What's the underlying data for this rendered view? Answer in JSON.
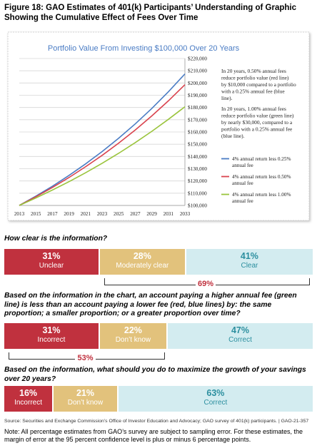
{
  "figure_title": "Figure 18: GAO Estimates of 401(k) Participants’ Understanding of Graphic Showing the Cumulative Effect of Fees Over Time",
  "chart_data": {
    "type": "line",
    "title": "Portfolio Value From Investing $100,000 Over 20 Years",
    "x": [
      2013,
      2015,
      2017,
      2019,
      2021,
      2023,
      2025,
      2027,
      2029,
      2031,
      2033
    ],
    "xlim": [
      2013,
      2033
    ],
    "ylim": [
      100000,
      220000
    ],
    "x_ticks": [
      "2013",
      "2015",
      "2017",
      "2019",
      "2021",
      "2023",
      "2025",
      "2027",
      "2029",
      "2031",
      "2033"
    ],
    "y_ticks": [
      "$100,000",
      "$110,000",
      "$120,000",
      "$130,000",
      "$140,000",
      "$150,000",
      "$160,000",
      "$170,000",
      "$180,000",
      "$190,000",
      "$200,000",
      "$210,000",
      "$220,000"
    ],
    "grid": true,
    "series": [
      {
        "name": "4% annual return less 0.25% annual fee",
        "color": "#4a7cc4",
        "values": [
          100000,
          107600,
          115700,
          124500,
          133900,
          144000,
          154900,
          166600,
          179200,
          192800,
          207400
        ]
      },
      {
        "name": "4% annual return less 0.50% annual fee",
        "color": "#d9434e",
        "values": [
          100000,
          107100,
          114700,
          122800,
          131600,
          140900,
          150900,
          161600,
          173100,
          185400,
          198600
        ]
      },
      {
        "name": "4% annual return less 1.00% annual fee",
        "color": "#9ac43c",
        "values": [
          100000,
          106100,
          112600,
          119400,
          126700,
          134400,
          142600,
          151300,
          160500,
          170300,
          180600
        ]
      }
    ],
    "legend_position": "right",
    "annotations": [
      "In 20 years, 0.50% annual fees reduce portfolio value (red line) by $10,000 compared to a portfolio with a 0.25% annual fee (blue line).",
      "In 20 years, 1.00% annual fees reduce portfolio value (green line) by nearly $30,000, compared to a portfolio with a 0.25% annual fee (blue line)."
    ]
  },
  "questions": [
    {
      "text": "How clear is the information?",
      "segments": [
        {
          "value": 31,
          "pct": "31%",
          "label": "Unclear",
          "color": "red"
        },
        {
          "value": 28,
          "pct": "28%",
          "label": "Moderately clear",
          "color": "tan"
        },
        {
          "value": 41,
          "pct": "41%",
          "label": "Clear",
          "color": "blue"
        }
      ],
      "brace_label": "69%"
    },
    {
      "text": "Based on the information in the chart, an account paying a higher annual fee (green line) is less than an account paying a lower fee (red, blue lines) by: the same proportion; a smaller proportion; or a greater proportion over time?",
      "segments": [
        {
          "value": 31,
          "pct": "31%",
          "label": "Incorrect",
          "color": "red"
        },
        {
          "value": 22,
          "pct": "22%",
          "label": "Don’t know",
          "color": "tan"
        },
        {
          "value": 47,
          "pct": "47%",
          "label": "Correct",
          "color": "blue"
        }
      ],
      "brace_label": "53%"
    },
    {
      "text": "Based on the information, what should you do to maximize the growth of your savings over 20 years?",
      "segments": [
        {
          "value": 16,
          "pct": "16%",
          "label": "Incorrect",
          "color": "red"
        },
        {
          "value": 21,
          "pct": "21%",
          "label": "Don’t know",
          "color": "tan"
        },
        {
          "value": 63,
          "pct": "63%",
          "label": "Correct",
          "color": "blue"
        }
      ]
    }
  ],
  "source": "Source: Securities and Exchange Commission’s Office of Investor Education and Advocacy; GAO survey of 401(k) participants.  |  GAO-21-357",
  "note": "Note: All percentage estimates from GAO’s survey are subject to sampling error. For these estimates, the margin of error at the 95 percent confidence level is plus or minus 6 percentage points."
}
